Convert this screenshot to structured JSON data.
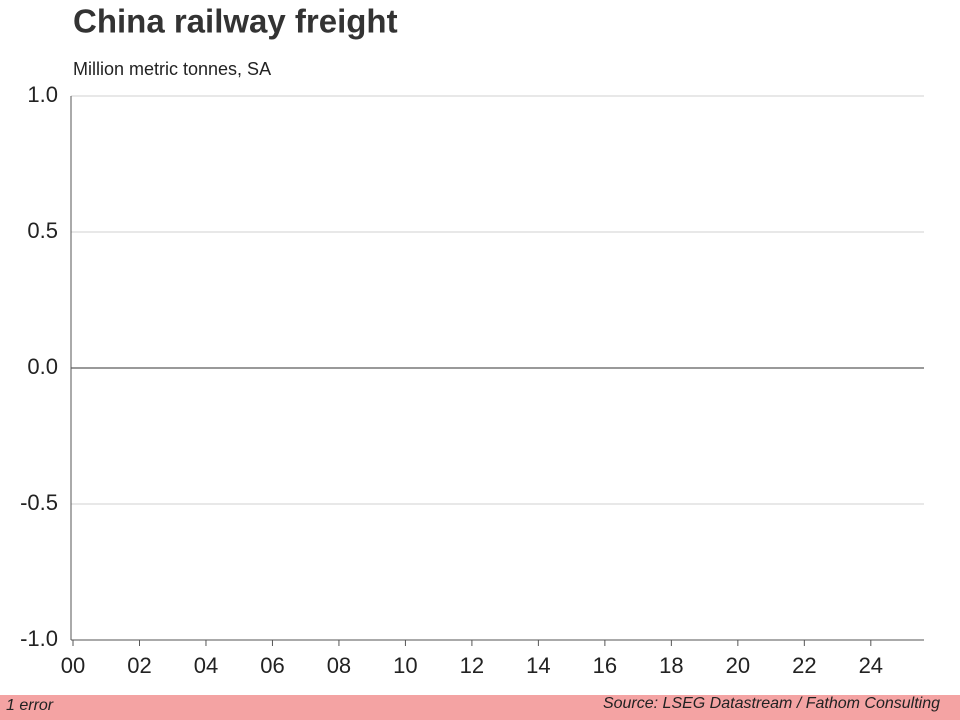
{
  "chart_data": {
    "type": "line",
    "title": "China railway freight",
    "subtitle": "Million metric tonnes, SA",
    "series": [],
    "xlim": [
      2000,
      2025.6
    ],
    "xticks": [
      {
        "value": 2000,
        "label": "00"
      },
      {
        "value": 2002,
        "label": "02"
      },
      {
        "value": 2004,
        "label": "04"
      },
      {
        "value": 2006,
        "label": "06"
      },
      {
        "value": 2008,
        "label": "08"
      },
      {
        "value": 2010,
        "label": "10"
      },
      {
        "value": 2012,
        "label": "12"
      },
      {
        "value": 2014,
        "label": "14"
      },
      {
        "value": 2016,
        "label": "16"
      },
      {
        "value": 2018,
        "label": "18"
      },
      {
        "value": 2020,
        "label": "20"
      },
      {
        "value": 2022,
        "label": "22"
      },
      {
        "value": 2024,
        "label": "24"
      }
    ],
    "ylim": [
      -1,
      1
    ],
    "yticks": [
      {
        "value": 1,
        "label": "1.0"
      },
      {
        "value": 0.5,
        "label": "0.5"
      },
      {
        "value": 0,
        "label": "0.0"
      },
      {
        "value": -0.5,
        "label": "-0.5"
      },
      {
        "value": -1,
        "label": "-1.0"
      }
    ],
    "grid": true,
    "source": "Source: LSEG Datastream / Fathom Consulting"
  },
  "status": "1 error"
}
